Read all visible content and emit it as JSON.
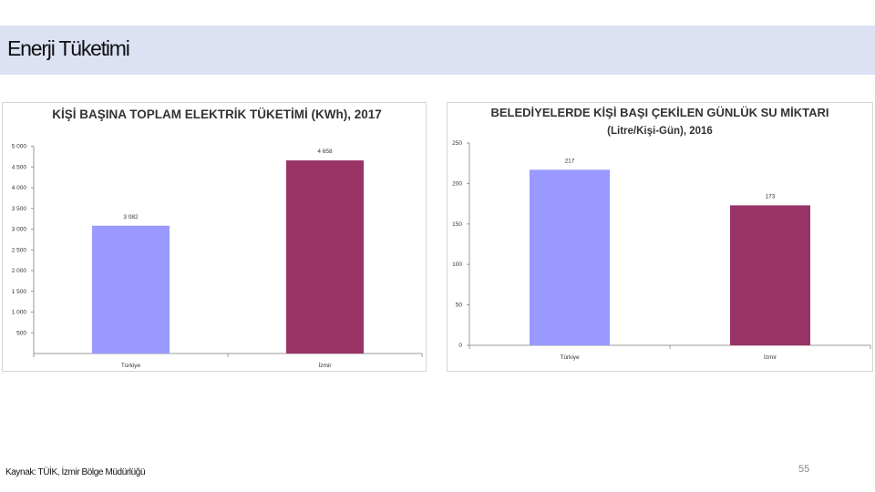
{
  "page": {
    "title": "Enerji Tüketimi",
    "source": "Kaynak: TÜİK, İzmir Bölge Müdürlüğü",
    "page_number": "55"
  },
  "colors": {
    "band": "#dce1f3",
    "turkiye_bar": "#9999ff",
    "izmir_bar": "#993366"
  },
  "chart_data": [
    {
      "type": "bar",
      "title": "KİŞİ BAŞINA TOPLAM ELEKTRİK TÜKETİMİ (KWh), 2017",
      "subtitle": "",
      "categories": [
        "Türkiye",
        "İzmir"
      ],
      "values": [
        3082,
        4658
      ],
      "value_labels": [
        "3 082",
        "4 658"
      ],
      "ylim": [
        0,
        5000
      ],
      "yticks": [
        500,
        1000,
        1500,
        2000,
        2500,
        3000,
        3500,
        4000,
        4500,
        5000
      ],
      "ytick_labels": [
        "500",
        "1 000",
        "1 500",
        "2 000",
        "2 500",
        "3 000",
        "3 500",
        "4 000",
        "4 500",
        "5 000"
      ],
      "xlabel": "",
      "ylabel": "",
      "grid": false,
      "legend": "none",
      "bar_colors": [
        "#9999ff",
        "#993366"
      ]
    },
    {
      "type": "bar",
      "title": "BELEDİYELERDE KİŞİ BAŞI ÇEKİLEN GÜNLÜK SU MİKTARI",
      "subtitle": "(Litre/Kişi-Gün), 2016",
      "categories": [
        "Türkiye",
        "İzmir"
      ],
      "values": [
        217,
        173
      ],
      "value_labels": [
        "217",
        "173"
      ],
      "ylim": [
        0,
        250
      ],
      "yticks": [
        0,
        50,
        100,
        150,
        200,
        250
      ],
      "ytick_labels": [
        "0",
        "50",
        "100",
        "150",
        "200",
        "250"
      ],
      "xlabel": "",
      "ylabel": "",
      "grid": false,
      "legend": "none",
      "bar_colors": [
        "#9999ff",
        "#993366"
      ]
    }
  ]
}
